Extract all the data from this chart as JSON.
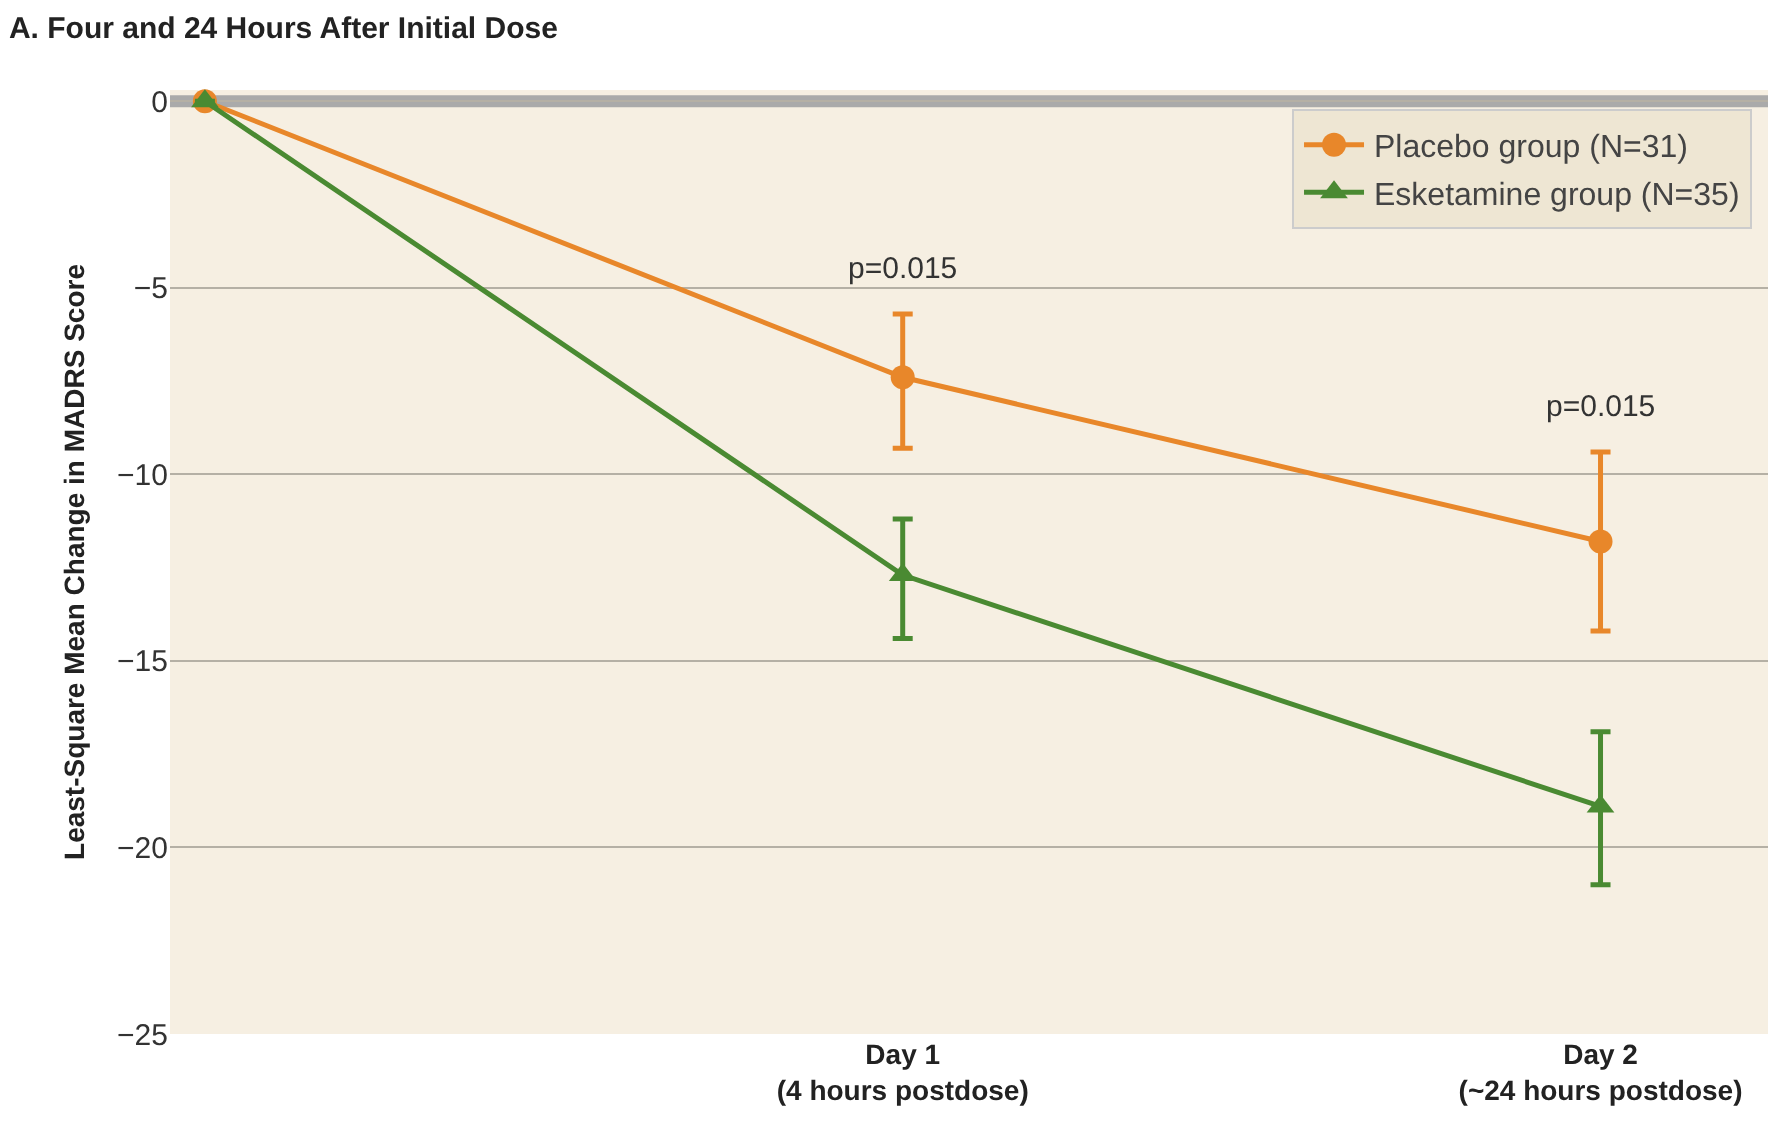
{
  "chart_data": {
    "type": "line",
    "title": "A. Four and 24 Hours After Initial Dose",
    "ylabel": "Least-Square Mean Change in MADRS Score",
    "categories": [
      null,
      "Day 1\n(4 hours postdose)",
      "Day 2\n(~24 hours postdose)"
    ],
    "series": [
      {
        "name": "Placebo group (N=31)",
        "color": "#e8872a",
        "marker": "circle",
        "values": [
          0,
          -7.4,
          -11.8
        ],
        "errors": [
          null,
          [
            -9.3,
            -5.7
          ],
          [
            -14.2,
            -9.4
          ]
        ]
      },
      {
        "name": "Esketamine group (N=35)",
        "color": "#4a8a32",
        "marker": "triangle",
        "values": [
          0,
          -12.7,
          -18.9
        ],
        "errors": [
          null,
          [
            -14.4,
            -11.2
          ],
          [
            -21.0,
            -16.9
          ]
        ]
      }
    ],
    "ylim": [
      -25,
      0.3
    ],
    "yticks": [
      {
        "value": 0,
        "label": "0"
      },
      {
        "value": -5,
        "label": "−5"
      },
      {
        "value": -10,
        "label": "−10"
      },
      {
        "value": -15,
        "label": "−15"
      },
      {
        "value": -20,
        "label": "−20"
      },
      {
        "value": -25,
        "label": "−25"
      }
    ],
    "ref_lines": [
      {
        "axis": "y",
        "value": 0,
        "color": "#aaaaaa"
      }
    ],
    "annotations": [
      "p=0.015",
      "p=0.015"
    ],
    "grid": "y",
    "legend": "top right",
    "line_style": "solid"
  }
}
